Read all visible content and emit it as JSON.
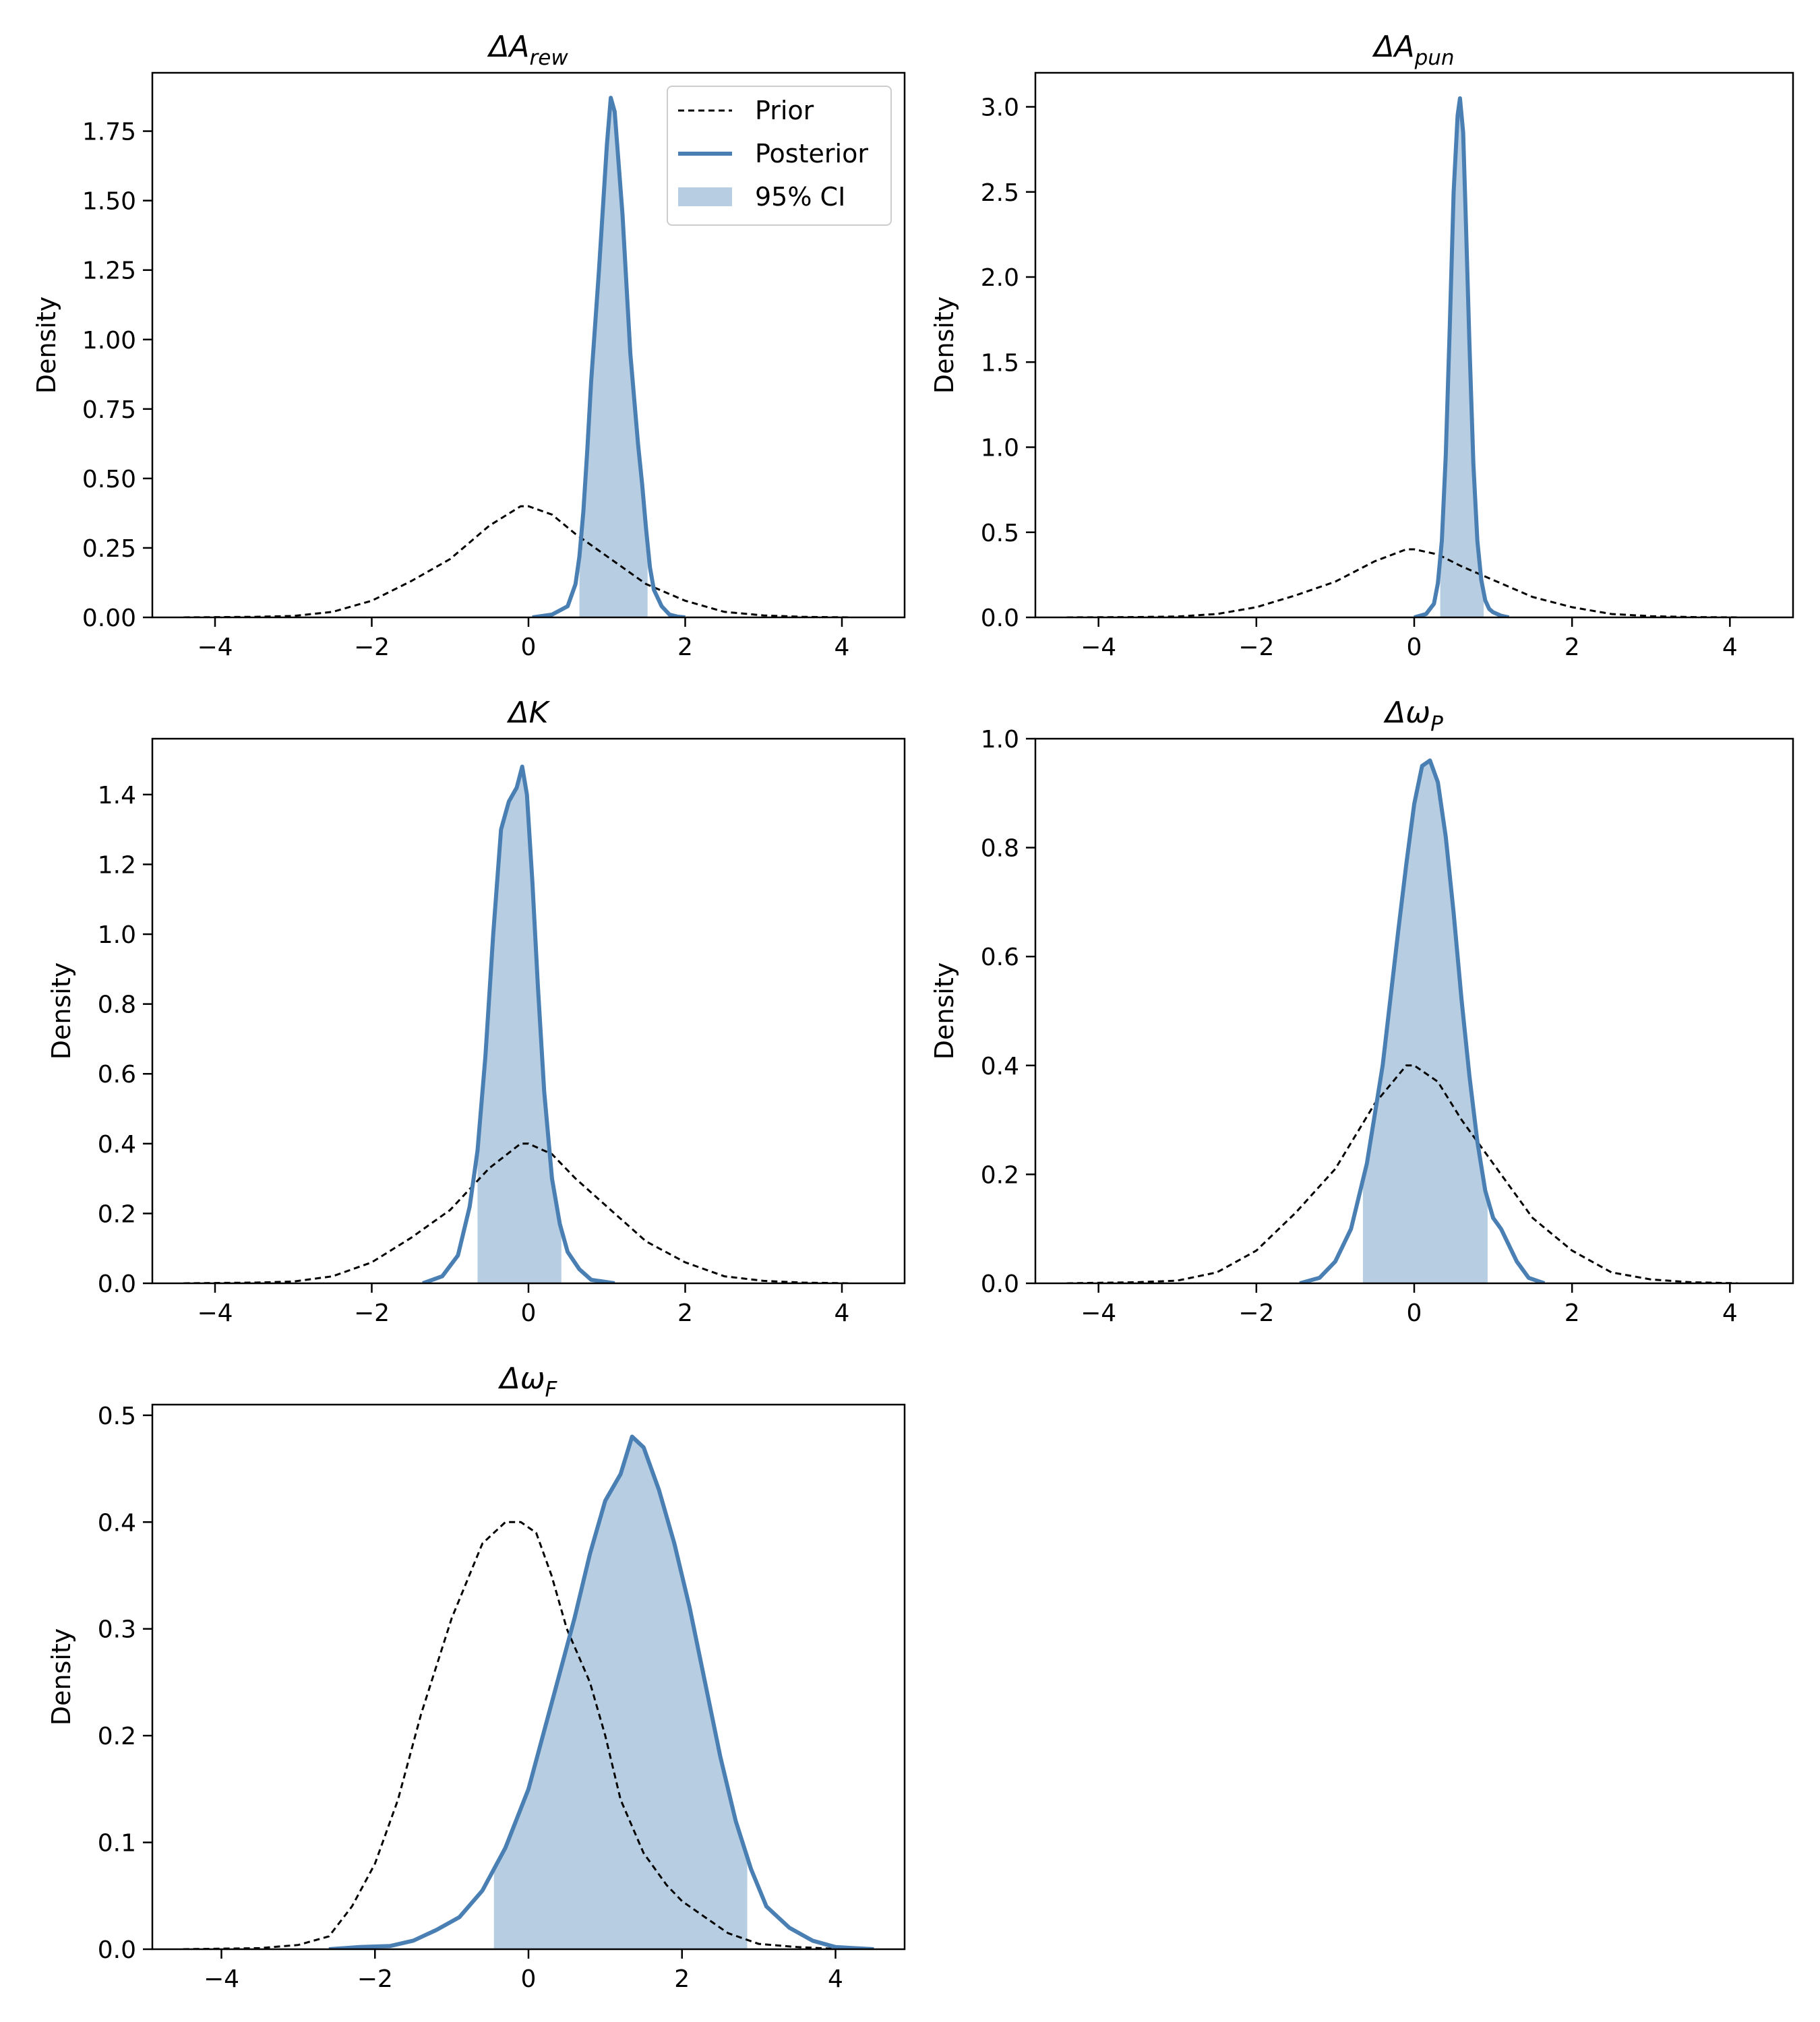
{
  "chart_data": [
    {
      "id": "arew",
      "type": "line",
      "title": {
        "base": "ΔA",
        "sub": "rew"
      },
      "xlabel": "",
      "ylabel": "Density",
      "xlim": [
        -4.8,
        4.8
      ],
      "ylim": [
        0,
        1.96
      ],
      "xticks": [
        -4,
        -2,
        0,
        2,
        4
      ],
      "xtick_labels": [
        "−4",
        "−2",
        "0",
        "2",
        "4"
      ],
      "yticks": [
        0,
        0.25,
        0.5,
        0.75,
        1.0,
        1.25,
        1.5,
        1.75
      ],
      "ytick_labels": [
        "0.00",
        "0.25",
        "0.50",
        "0.75",
        "1.00",
        "1.25",
        "1.50",
        "1.75"
      ],
      "series": [
        {
          "name": "Prior",
          "x": [
            -4.4,
            -3.5,
            -3.0,
            -2.5,
            -2.0,
            -1.5,
            -1.0,
            -0.5,
            -0.1,
            0.0,
            0.3,
            0.6,
            1.0,
            1.5,
            2.0,
            2.5,
            3.0,
            3.5,
            4.1
          ],
          "y": [
            0.0,
            0.002,
            0.005,
            0.02,
            0.06,
            0.13,
            0.21,
            0.33,
            0.4,
            0.4,
            0.37,
            0.3,
            0.22,
            0.12,
            0.06,
            0.02,
            0.007,
            0.002,
            0.0
          ]
        },
        {
          "name": "Posterior",
          "x": [
            0.05,
            0.3,
            0.5,
            0.6,
            0.65,
            0.7,
            0.75,
            0.8,
            0.9,
            1.0,
            1.05,
            1.1,
            1.2,
            1.3,
            1.4,
            1.45,
            1.5,
            1.55,
            1.6,
            1.7,
            1.8,
            1.9,
            2.0
          ],
          "y": [
            0.0,
            0.01,
            0.04,
            0.12,
            0.22,
            0.38,
            0.6,
            0.85,
            1.25,
            1.7,
            1.87,
            1.82,
            1.45,
            0.95,
            0.62,
            0.48,
            0.32,
            0.18,
            0.1,
            0.04,
            0.01,
            0.003,
            0.0
          ]
        }
      ],
      "ci": [
        0.65,
        1.52
      ],
      "legend": {
        "entries": [
          "Prior",
          "Posterior",
          "95% CI"
        ],
        "position": "top-right"
      }
    },
    {
      "id": "apun",
      "type": "line",
      "title": {
        "base": "ΔA",
        "sub": "pun"
      },
      "xlabel": "",
      "ylabel": "Density",
      "xlim": [
        -4.8,
        4.8
      ],
      "ylim": [
        0,
        3.2
      ],
      "xticks": [
        -4,
        -2,
        0,
        2,
        4
      ],
      "xtick_labels": [
        "−4",
        "−2",
        "0",
        "2",
        "4"
      ],
      "yticks": [
        0,
        0.5,
        1.0,
        1.5,
        2.0,
        2.5,
        3.0
      ],
      "ytick_labels": [
        "0.0",
        "0.5",
        "1.0",
        "1.5",
        "2.0",
        "2.5",
        "3.0"
      ],
      "series": [
        {
          "name": "Prior",
          "x": [
            -4.4,
            -3.5,
            -3.0,
            -2.5,
            -2.0,
            -1.5,
            -1.0,
            -0.5,
            -0.1,
            0.0,
            0.3,
            0.6,
            1.0,
            1.5,
            2.0,
            2.5,
            3.0,
            3.5,
            4.1
          ],
          "y": [
            0.0,
            0.002,
            0.005,
            0.02,
            0.06,
            0.13,
            0.21,
            0.33,
            0.4,
            0.4,
            0.37,
            0.3,
            0.22,
            0.12,
            0.06,
            0.02,
            0.007,
            0.002,
            0.0
          ]
        },
        {
          "name": "Posterior",
          "x": [
            0.0,
            0.15,
            0.25,
            0.3,
            0.35,
            0.4,
            0.45,
            0.5,
            0.55,
            0.58,
            0.62,
            0.65,
            0.7,
            0.75,
            0.8,
            0.85,
            0.9,
            0.95,
            1.0,
            1.1,
            1.2
          ],
          "y": [
            0.0,
            0.02,
            0.08,
            0.2,
            0.45,
            0.95,
            1.7,
            2.5,
            2.95,
            3.05,
            2.85,
            2.4,
            1.6,
            0.9,
            0.45,
            0.22,
            0.1,
            0.05,
            0.03,
            0.01,
            0.0
          ]
        }
      ],
      "ci": [
        0.33,
        0.88
      ]
    },
    {
      "id": "k",
      "type": "line",
      "title": {
        "base": "ΔK",
        "sub": ""
      },
      "xlabel": "",
      "ylabel": "Density",
      "xlim": [
        -4.8,
        4.8
      ],
      "ylim": [
        0,
        1.56
      ],
      "xticks": [
        -4,
        -2,
        0,
        2,
        4
      ],
      "xtick_labels": [
        "−4",
        "−2",
        "0",
        "2",
        "4"
      ],
      "yticks": [
        0,
        0.2,
        0.4,
        0.6,
        0.8,
        1.0,
        1.2,
        1.4
      ],
      "ytick_labels": [
        "0.0",
        "0.2",
        "0.4",
        "0.6",
        "0.8",
        "1.0",
        "1.2",
        "1.4"
      ],
      "series": [
        {
          "name": "Prior",
          "x": [
            -4.4,
            -3.5,
            -3.0,
            -2.5,
            -2.0,
            -1.5,
            -1.0,
            -0.5,
            -0.1,
            0.0,
            0.3,
            0.6,
            1.0,
            1.5,
            2.0,
            2.5,
            3.0,
            3.5,
            4.1
          ],
          "y": [
            0.0,
            0.002,
            0.005,
            0.02,
            0.06,
            0.13,
            0.21,
            0.33,
            0.4,
            0.4,
            0.37,
            0.3,
            0.22,
            0.12,
            0.06,
            0.02,
            0.007,
            0.002,
            0.0
          ]
        },
        {
          "name": "Posterior",
          "x": [
            -1.35,
            -1.1,
            -0.9,
            -0.75,
            -0.65,
            -0.55,
            -0.45,
            -0.35,
            -0.25,
            -0.15,
            -0.08,
            -0.02,
            0.05,
            0.12,
            0.2,
            0.3,
            0.4,
            0.5,
            0.65,
            0.8,
            1.1
          ],
          "y": [
            0.0,
            0.02,
            0.08,
            0.22,
            0.38,
            0.65,
            1.0,
            1.3,
            1.38,
            1.42,
            1.48,
            1.4,
            1.15,
            0.85,
            0.55,
            0.3,
            0.17,
            0.09,
            0.04,
            0.01,
            0.0
          ]
        }
      ],
      "ci": [
        -0.65,
        0.42
      ]
    },
    {
      "id": "wp",
      "type": "line",
      "title": {
        "base": "Δω",
        "sub": "P"
      },
      "xlabel": "",
      "ylabel": "Density",
      "xlim": [
        -4.8,
        4.8
      ],
      "ylim": [
        0,
        1.0
      ],
      "xticks": [
        -4,
        -2,
        0,
        2,
        4
      ],
      "xtick_labels": [
        "−4",
        "−2",
        "0",
        "2",
        "4"
      ],
      "yticks": [
        0,
        0.2,
        0.4,
        0.6,
        0.8,
        1.0
      ],
      "ytick_labels": [
        "0.0",
        "0.2",
        "0.4",
        "0.6",
        "0.8",
        "1.0"
      ],
      "series": [
        {
          "name": "Prior",
          "x": [
            -4.4,
            -3.5,
            -3.0,
            -2.5,
            -2.0,
            -1.5,
            -1.0,
            -0.5,
            -0.1,
            0.0,
            0.3,
            0.6,
            1.0,
            1.5,
            2.0,
            2.5,
            3.0,
            3.5,
            4.1
          ],
          "y": [
            0.0,
            0.002,
            0.005,
            0.02,
            0.06,
            0.13,
            0.21,
            0.33,
            0.4,
            0.4,
            0.37,
            0.3,
            0.22,
            0.12,
            0.06,
            0.02,
            0.007,
            0.002,
            0.0
          ]
        },
        {
          "name": "Posterior",
          "x": [
            -1.45,
            -1.2,
            -1.0,
            -0.8,
            -0.6,
            -0.4,
            -0.2,
            -0.1,
            0.0,
            0.1,
            0.2,
            0.3,
            0.4,
            0.5,
            0.6,
            0.7,
            0.8,
            0.9,
            1.0,
            1.1,
            1.2,
            1.3,
            1.45,
            1.65
          ],
          "y": [
            0.0,
            0.01,
            0.04,
            0.1,
            0.22,
            0.4,
            0.65,
            0.77,
            0.88,
            0.95,
            0.96,
            0.92,
            0.82,
            0.68,
            0.52,
            0.38,
            0.26,
            0.17,
            0.12,
            0.1,
            0.07,
            0.04,
            0.01,
            0.0
          ]
        }
      ],
      "ci": [
        -0.65,
        0.93
      ]
    },
    {
      "id": "wf",
      "type": "line",
      "title": {
        "base": "Δω",
        "sub": "F"
      },
      "xlabel": "",
      "ylabel": "Density",
      "xlim": [
        -4.9,
        4.9
      ],
      "ylim": [
        0,
        0.51
      ],
      "xticks": [
        -4,
        -2,
        0,
        2,
        4
      ],
      "xtick_labels": [
        "−4",
        "−2",
        "0",
        "2",
        "4"
      ],
      "yticks": [
        0,
        0.1,
        0.2,
        0.3,
        0.4,
        0.5
      ],
      "ytick_labels": [
        "0.0",
        "0.1",
        "0.2",
        "0.3",
        "0.4",
        "0.5"
      ],
      "series": [
        {
          "name": "Prior",
          "x": [
            -4.5,
            -3.5,
            -3.0,
            -2.6,
            -2.3,
            -2.0,
            -1.7,
            -1.4,
            -1.0,
            -0.6,
            -0.3,
            -0.1,
            0.1,
            0.3,
            0.5,
            0.8,
            1.0,
            1.2,
            1.5,
            1.8,
            2.0,
            2.3,
            2.6,
            3.0,
            3.5,
            4.1
          ],
          "y": [
            0.0,
            0.001,
            0.004,
            0.012,
            0.04,
            0.08,
            0.14,
            0.22,
            0.31,
            0.38,
            0.4,
            0.4,
            0.39,
            0.35,
            0.3,
            0.25,
            0.2,
            0.14,
            0.09,
            0.06,
            0.045,
            0.03,
            0.015,
            0.005,
            0.002,
            0.0
          ]
        },
        {
          "name": "Posterior",
          "x": [
            -2.6,
            -2.2,
            -1.8,
            -1.5,
            -1.2,
            -0.9,
            -0.6,
            -0.3,
            0.0,
            0.3,
            0.6,
            0.8,
            1.0,
            1.2,
            1.35,
            1.5,
            1.7,
            1.9,
            2.1,
            2.3,
            2.5,
            2.7,
            2.9,
            3.1,
            3.4,
            3.7,
            4.0,
            4.5
          ],
          "y": [
            0.0,
            0.002,
            0.003,
            0.008,
            0.018,
            0.03,
            0.055,
            0.095,
            0.15,
            0.23,
            0.31,
            0.37,
            0.42,
            0.445,
            0.48,
            0.47,
            0.43,
            0.38,
            0.32,
            0.25,
            0.18,
            0.12,
            0.075,
            0.04,
            0.02,
            0.008,
            0.002,
            0.0
          ]
        }
      ],
      "ci": [
        -0.45,
        2.85
      ]
    }
  ],
  "colors": {
    "posterior": "#4a7fb3",
    "ci_fill": "#b7cde2",
    "prior": "#000000",
    "axes": "#000000",
    "background": "#ffffff"
  }
}
